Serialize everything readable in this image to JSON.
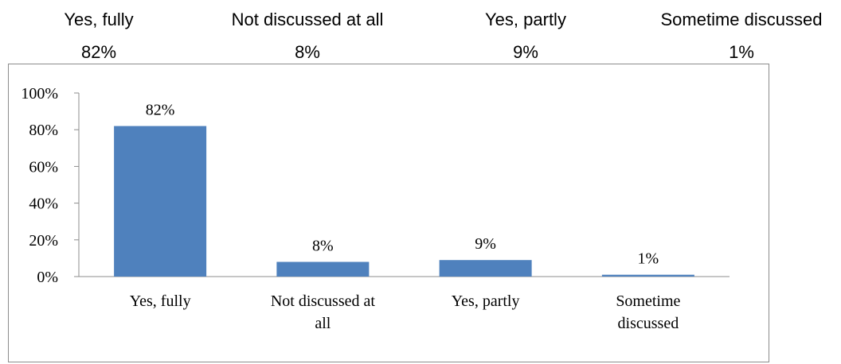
{
  "header": {
    "items": [
      {
        "label": "Yes, fully",
        "value": "82%"
      },
      {
        "label": "Not discussed at all",
        "value": "8%"
      },
      {
        "label": "Yes, partly",
        "value": "9%"
      },
      {
        "label": "Sometime discussed",
        "value": "1%"
      }
    ]
  },
  "chart_data": {
    "type": "bar",
    "categories": [
      "Yes, fully",
      "Not discussed at all",
      "Yes, partly",
      "Sometime discussed"
    ],
    "category_label_lines": [
      [
        "Yes, fully"
      ],
      [
        "Not discussed at",
        "all"
      ],
      [
        "Yes, partly"
      ],
      [
        "Sometime",
        "discussed"
      ]
    ],
    "values": [
      82,
      8,
      9,
      1
    ],
    "data_labels": [
      "82%",
      "8%",
      "9%",
      "1%"
    ],
    "y_ticks": [
      0,
      20,
      40,
      60,
      80,
      100
    ],
    "y_tick_labels": [
      "0%",
      "20%",
      "40%",
      "60%",
      "80%",
      "100%"
    ],
    "ylim": [
      0,
      100
    ],
    "grid": false,
    "legend": "none",
    "bar_color": "#4f81bd"
  }
}
